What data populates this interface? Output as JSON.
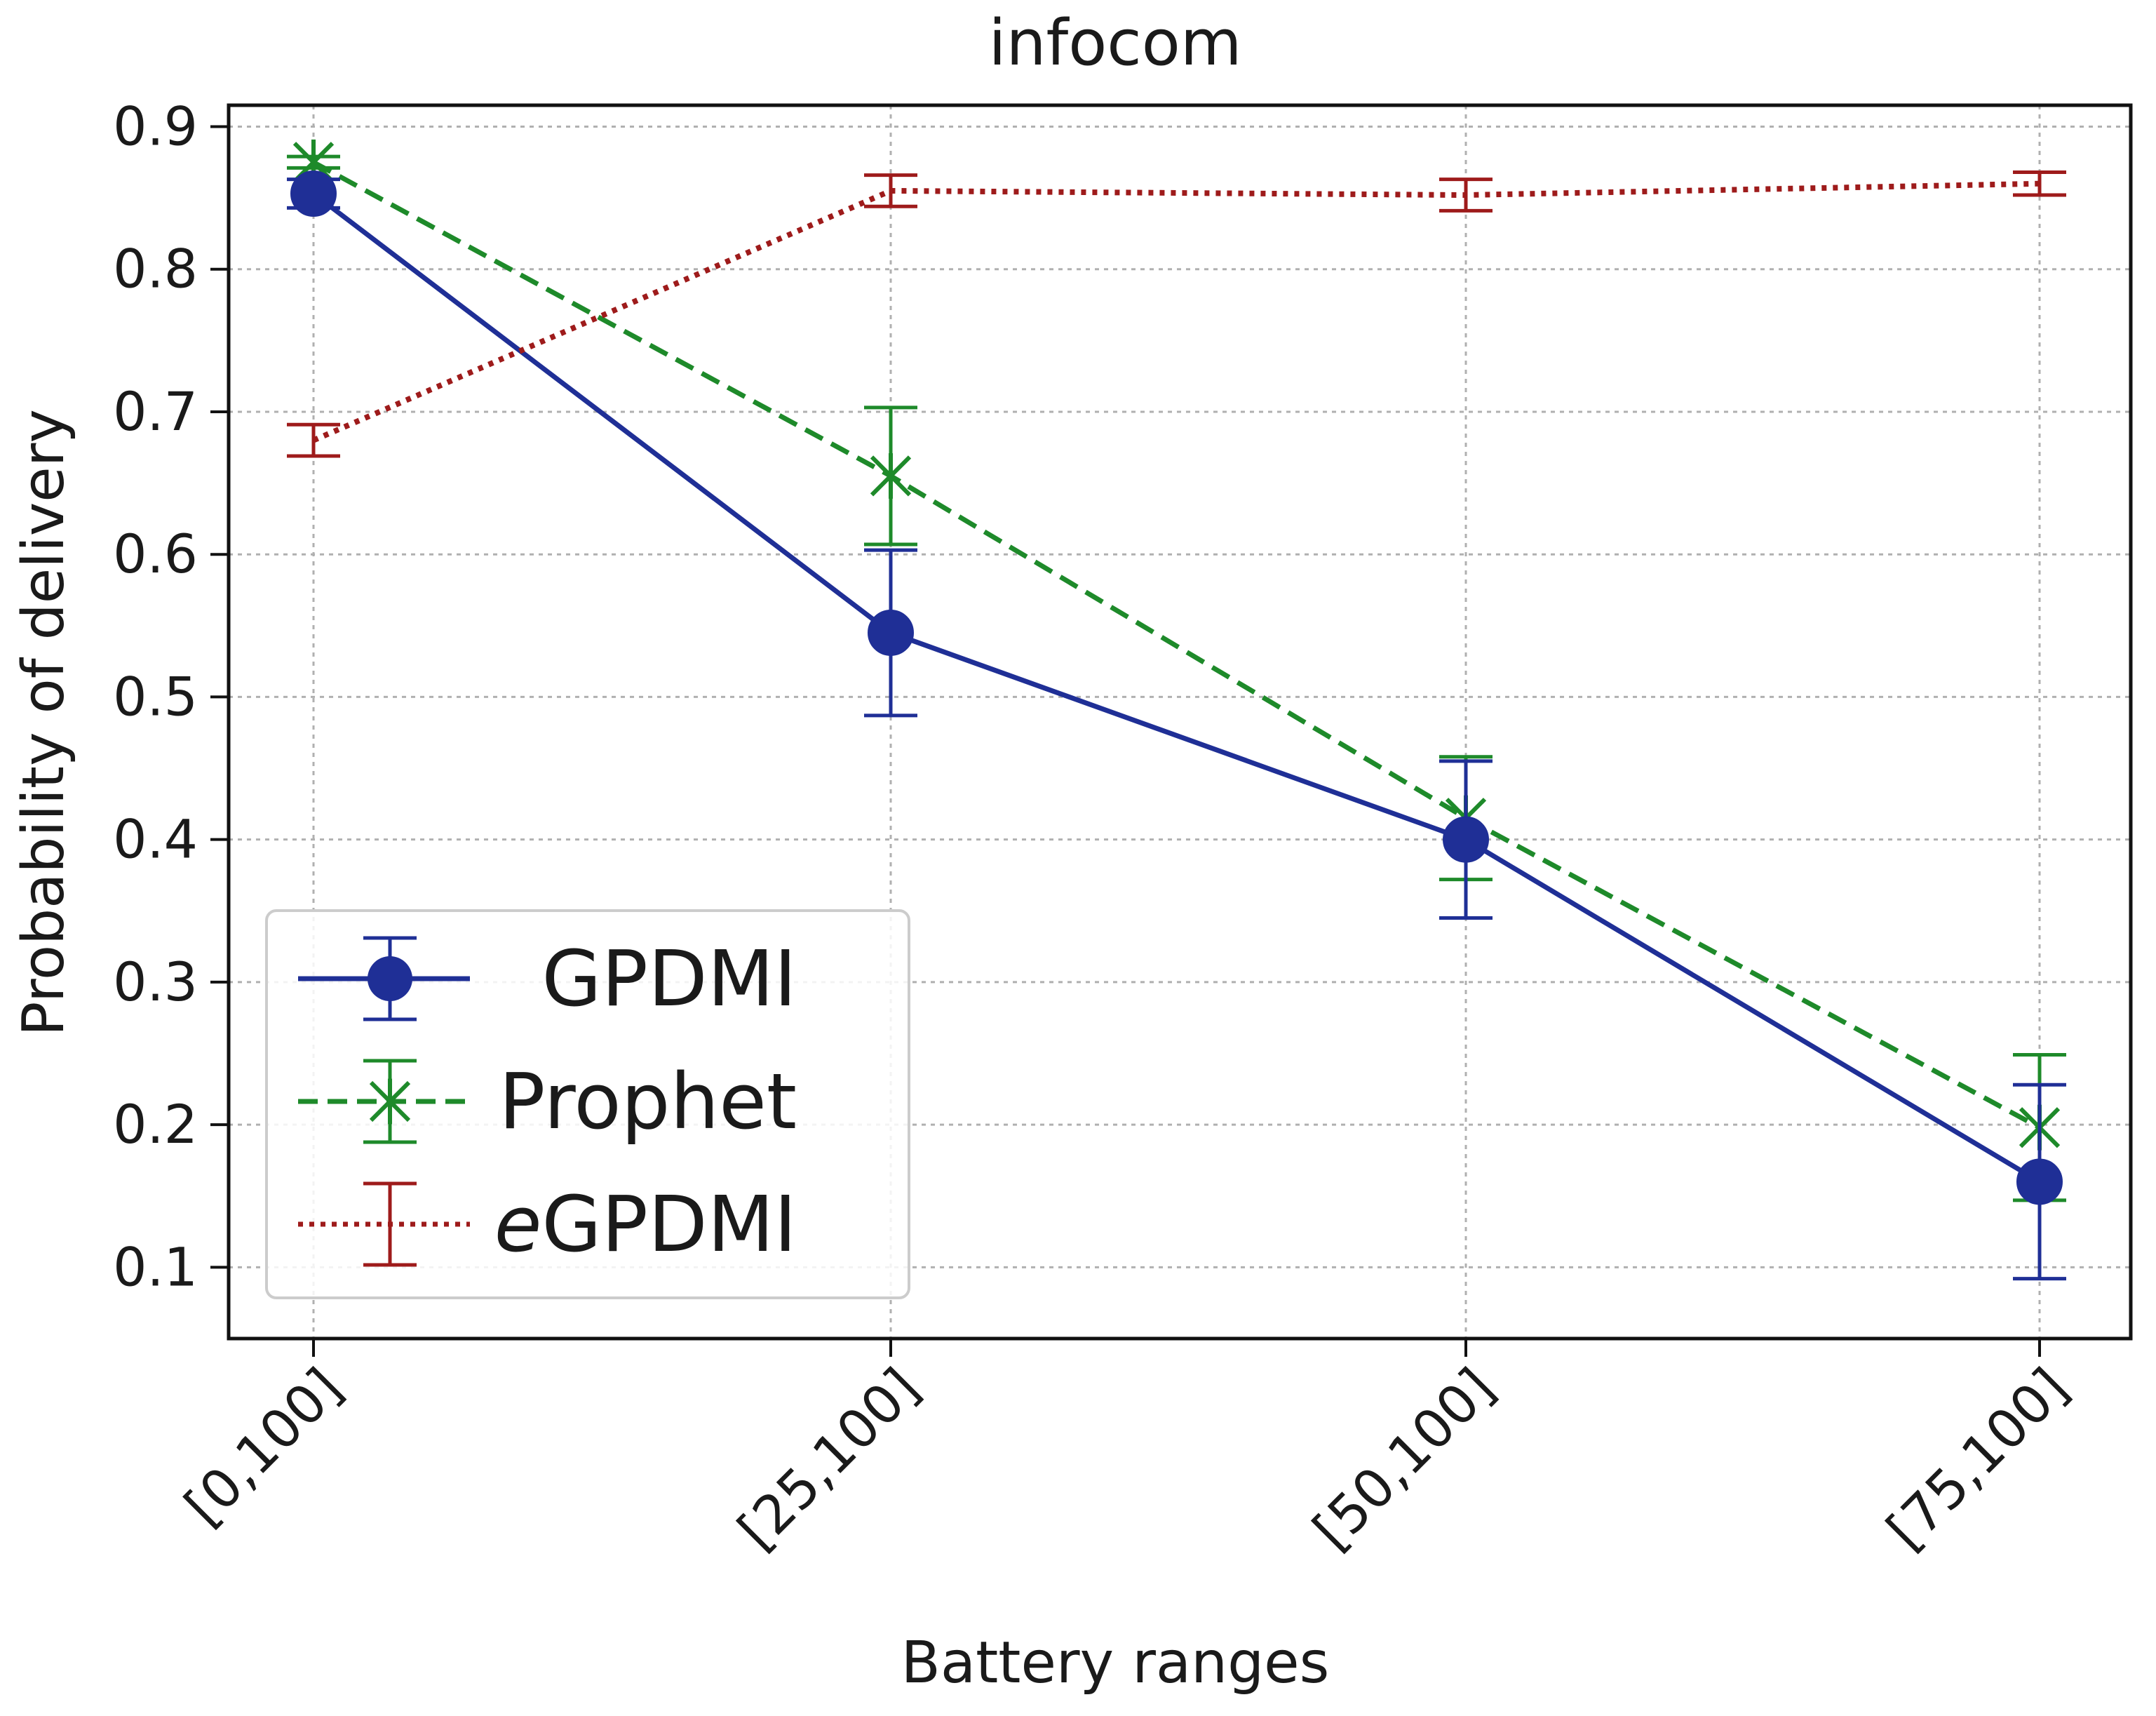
{
  "chart_data": {
    "type": "line",
    "title": "infocom",
    "xlabel": "Battery ranges",
    "ylabel": "Probability of delivery",
    "categories": [
      "[0,100]",
      "[25,100]",
      "[50,100]",
      "[75,100]"
    ],
    "ylim": [
      0.05,
      0.915
    ],
    "yticks": [
      0.1,
      0.2,
      0.3,
      0.4,
      0.5,
      0.6,
      0.7,
      0.8,
      0.9
    ],
    "ytick_labels": [
      "0.1",
      "0.2",
      "0.3",
      "0.4",
      "0.5",
      "0.6",
      "0.7",
      "0.8",
      "0.9"
    ],
    "grid": true,
    "legend_position": "lower-left",
    "series": [
      {
        "name": "GPDMI",
        "legend_prefix": "",
        "legend_main": "GPDMI",
        "color": "#1f2f96",
        "line_style": "solid",
        "marker": "circle",
        "values": [
          0.853,
          0.545,
          0.4,
          0.16
        ],
        "errors": [
          0.01,
          0.058,
          0.055,
          0.068
        ]
      },
      {
        "name": "Prophet",
        "legend_prefix": "",
        "legend_main": "Prophet",
        "color": "#1e8a2a",
        "line_style": "dashed",
        "marker": "x",
        "values": [
          0.875,
          0.655,
          0.415,
          0.198
        ],
        "errors": [
          0.004,
          0.048,
          0.043,
          0.051
        ]
      },
      {
        "name": "eGPDMI",
        "legend_prefix": "e",
        "legend_main": "GPDMI",
        "color": "#9e1b1b",
        "line_style": "dotted",
        "marker": "none",
        "values": [
          0.68,
          0.855,
          0.852,
          0.86
        ],
        "errors": [
          0.011,
          0.011,
          0.011,
          0.008
        ]
      }
    ]
  }
}
